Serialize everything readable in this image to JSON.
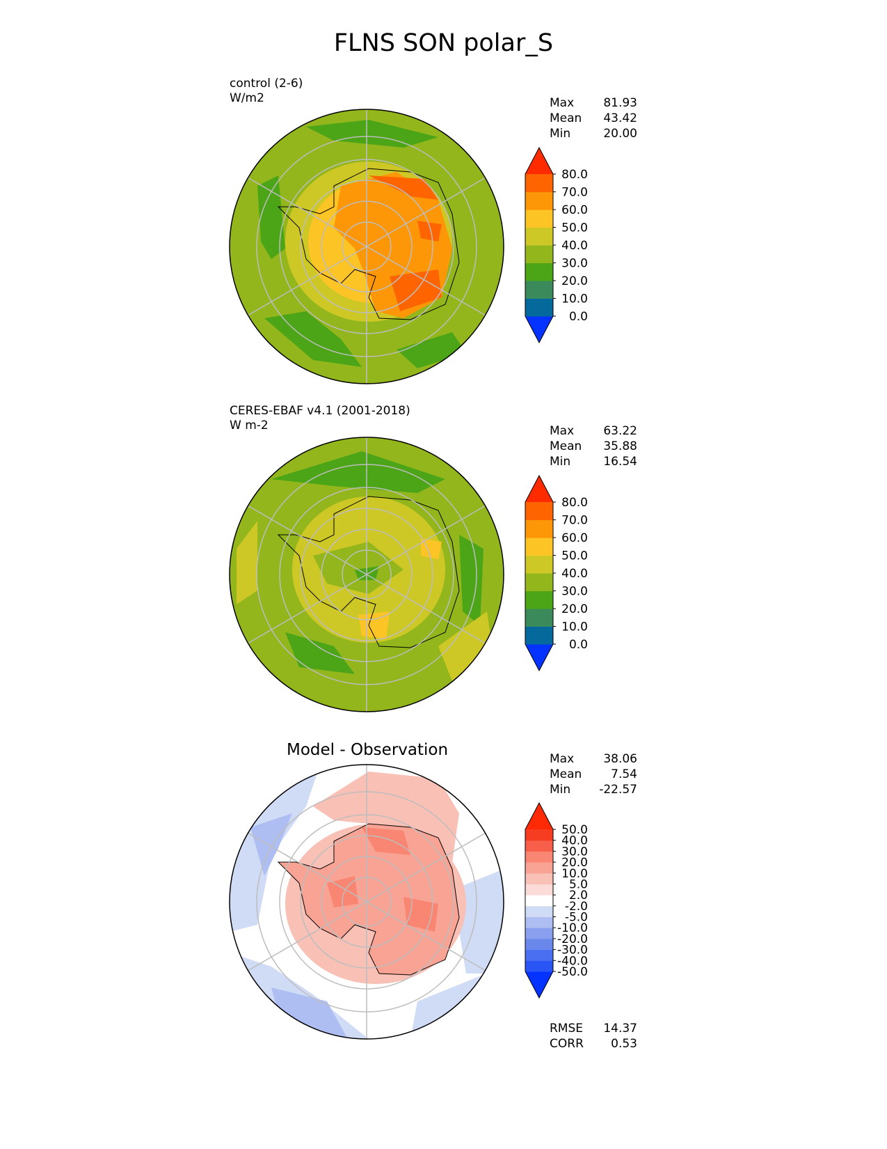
{
  "figure_title": "FLNS SON polar_S",
  "panels": [
    {
      "label_line1": "control (2-6)",
      "label_line2": "W/m2",
      "stats": {
        "max_label": "Max",
        "max": "81.93",
        "mean_label": "Mean",
        "mean": "43.42",
        "min_label": "Min",
        "min": "20.00"
      },
      "colorbar": {
        "colors": [
          "#0433ff",
          "#05699c",
          "#3a8a5c",
          "#4ba517",
          "#92b61c",
          "#cdc826",
          "#fdc426",
          "#fd9708",
          "#fe6501",
          "#fe2b01"
        ],
        "ticks": [
          "0.0",
          "10.0",
          "20.0",
          "30.0",
          "40.0",
          "50.0",
          "60.0",
          "70.0",
          "80.0"
        ]
      }
    },
    {
      "label_line1": "CERES-EBAF v4.1 (2001-2018)",
      "label_line2": "W m-2",
      "stats": {
        "max_label": "Max",
        "max": "63.22",
        "mean_label": "Mean",
        "mean": "35.88",
        "min_label": "Min",
        "min": "16.54"
      },
      "colorbar": {
        "colors": [
          "#0433ff",
          "#05699c",
          "#3a8a5c",
          "#4ba517",
          "#92b61c",
          "#cdc826",
          "#fdc426",
          "#fd9708",
          "#fe6501",
          "#fe2b01"
        ],
        "ticks": [
          "0.0",
          "10.0",
          "20.0",
          "30.0",
          "40.0",
          "50.0",
          "60.0",
          "70.0",
          "80.0"
        ]
      }
    },
    {
      "title": "Model - Observation",
      "stats": {
        "max_label": "Max",
        "max": "38.06",
        "mean_label": "Mean",
        "mean": "7.54",
        "min_label": "Min",
        "min": "-22.57"
      },
      "metrics": {
        "rmse_label": "RMSE",
        "rmse": "14.37",
        "corr_label": "CORR",
        "corr": "0.53"
      },
      "colorbar": {
        "colors": [
          "#0433ff",
          "#2a55f5",
          "#4a6ff0",
          "#6a88ec",
          "#8aa0ee",
          "#aebef2",
          "#d0dbf5",
          "#ffffff",
          "#fbdcd8",
          "#f9c0b6",
          "#f9a394",
          "#f98672",
          "#f85f4a",
          "#f63d22",
          "#fd2a05"
        ],
        "ticks": [
          "-50.0",
          "-40.0",
          "-30.0",
          "-20.0",
          "-10.0",
          "-5.0",
          "-2.0",
          "2.0",
          "5.0",
          "10.0",
          "20.0",
          "30.0",
          "40.0",
          "50.0"
        ]
      }
    }
  ]
}
